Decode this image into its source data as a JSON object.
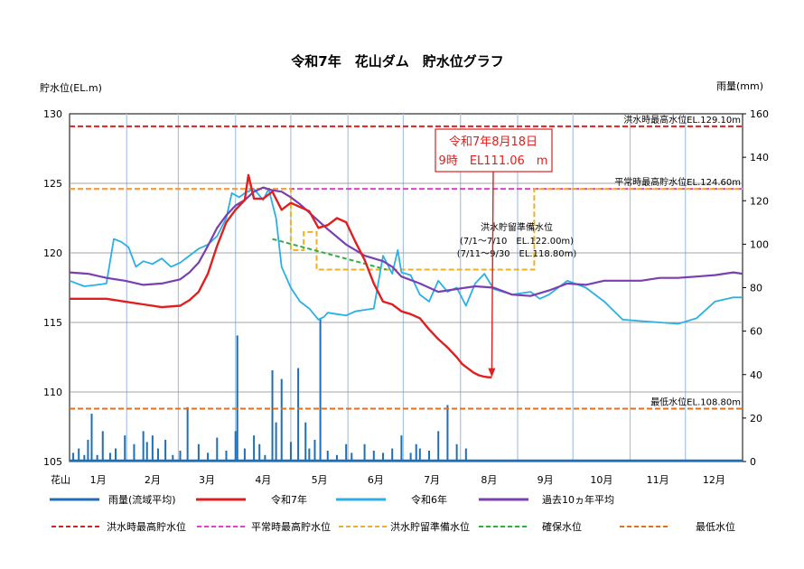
{
  "chart_data": {
    "type": "line",
    "title": "令和7年　花山ダム　貯水位グラフ",
    "ylabel": "貯水位(EL.m)",
    "y2label": "雨量(mm)",
    "xlabel": "花山",
    "ylim": [
      105,
      130
    ],
    "y2lim": [
      0,
      160
    ],
    "yticks": [
      "105",
      "110",
      "115",
      "120",
      "125",
      "130"
    ],
    "y2ticks": [
      "0",
      "20",
      "40",
      "60",
      "80",
      "100",
      "120",
      "140",
      "160"
    ],
    "y2_mark": "80月",
    "months": [
      "1月",
      "2月",
      "3月",
      "4月",
      "5月",
      "6月",
      "7月",
      "8月",
      "9月",
      "10月",
      "11月",
      "12月"
    ],
    "grid": true,
    "colors": {
      "rain": "#1f6fb4",
      "r7": "#e02020",
      "r6": "#2ab0e4",
      "avg10": "#7a3fb0",
      "flood_max": "#e02020",
      "normal_max": "#e040d0",
      "prep": "#f0b020",
      "secure": "#30b040",
      "min": "#e07020"
    },
    "series": [
      {
        "key": "r7",
        "name": "令和7年",
        "x": [
          0,
          10,
          20,
          30,
          40,
          50,
          60,
          65,
          70,
          75,
          80,
          85,
          90,
          95,
          97,
          100,
          105,
          110,
          115,
          120,
          125,
          130,
          135,
          140,
          145,
          150,
          155,
          160,
          165,
          170,
          175,
          180,
          185,
          190,
          195,
          200,
          205,
          210,
          213,
          216,
          219,
          222,
          225,
          227,
          229
        ],
        "values": [
          116.7,
          116.7,
          116.7,
          116.5,
          116.3,
          116.1,
          116.2,
          116.6,
          117.2,
          118.5,
          120.5,
          122.2,
          123.1,
          123.8,
          125.6,
          123.9,
          123.9,
          124.4,
          123.1,
          123.6,
          123.3,
          123.0,
          121.8,
          122.0,
          122.5,
          122.2,
          120.8,
          119.5,
          117.8,
          116.5,
          116.3,
          115.8,
          115.6,
          115.3,
          114.5,
          113.8,
          113.2,
          112.5,
          112.0,
          111.7,
          111.4,
          111.2,
          111.1,
          111.06,
          111.06
        ]
      },
      {
        "key": "r6",
        "name": "令和6年",
        "x": [
          0,
          8,
          15,
          20,
          24,
          28,
          32,
          36,
          40,
          45,
          50,
          55,
          60,
          65,
          70,
          75,
          80,
          85,
          88,
          92,
          95,
          100,
          105,
          108,
          112,
          115,
          120,
          125,
          130,
          135,
          138,
          140,
          145,
          150,
          155,
          160,
          165,
          170,
          175,
          178,
          180,
          185,
          190,
          195,
          200,
          205,
          210,
          215,
          220,
          225,
          230,
          240,
          250,
          255,
          260,
          270,
          280,
          290,
          300,
          310,
          320,
          330,
          340,
          350,
          360,
          365
        ],
        "values": [
          118.0,
          117.6,
          117.7,
          117.8,
          121.0,
          120.8,
          120.4,
          119.0,
          119.4,
          119.2,
          119.6,
          119.0,
          119.3,
          119.8,
          120.3,
          120.6,
          121.2,
          122.5,
          124.3,
          124.0,
          124.3,
          124.6,
          123.8,
          124.6,
          122.5,
          119.0,
          117.5,
          116.5,
          116.0,
          115.2,
          115.4,
          115.7,
          115.6,
          115.5,
          115.8,
          115.9,
          116.0,
          119.8,
          118.5,
          120.2,
          118.6,
          118.4,
          117.0,
          116.5,
          118.0,
          117.2,
          117.5,
          116.2,
          117.8,
          118.5,
          117.4,
          117.0,
          117.2,
          116.7,
          117.0,
          118.0,
          117.5,
          116.5,
          115.2,
          115.1,
          115.0,
          114.9,
          115.3,
          116.5,
          116.8,
          116.8
        ]
      },
      {
        "key": "avg10",
        "name": "過去10ヵ年平均",
        "x": [
          0,
          10,
          20,
          30,
          40,
          50,
          60,
          65,
          70,
          75,
          80,
          85,
          90,
          95,
          100,
          105,
          110,
          115,
          120,
          125,
          130,
          140,
          150,
          160,
          170,
          175,
          180,
          190,
          200,
          210,
          220,
          230,
          240,
          250,
          260,
          270,
          280,
          290,
          300,
          310,
          320,
          330,
          340,
          350,
          360,
          365
        ],
        "values": [
          118.6,
          118.5,
          118.2,
          118.0,
          117.7,
          117.8,
          118.1,
          118.6,
          119.3,
          120.5,
          121.8,
          122.7,
          123.4,
          123.8,
          124.4,
          124.7,
          124.5,
          124.4,
          124.0,
          123.5,
          122.9,
          121.7,
          120.6,
          119.8,
          119.4,
          119.0,
          118.3,
          117.8,
          117.2,
          117.4,
          117.6,
          117.5,
          117.0,
          116.9,
          117.3,
          117.8,
          117.7,
          118.0,
          118.0,
          118.0,
          118.2,
          118.2,
          118.3,
          118.4,
          118.6,
          118.5
        ]
      }
    ],
    "rain": {
      "name": "雨量(流域平均)",
      "x": [
        2,
        5,
        8,
        10,
        12,
        15,
        18,
        22,
        25,
        30,
        35,
        40,
        42,
        45,
        48,
        52,
        56,
        60,
        64,
        70,
        75,
        80,
        85,
        90,
        91,
        95,
        100,
        103,
        106,
        110,
        112,
        115,
        120,
        124,
        128,
        130,
        133,
        136,
        140,
        145,
        150,
        153,
        160,
        165,
        170,
        175,
        180,
        185,
        188,
        190,
        195,
        200,
        205,
        210,
        215
      ],
      "values": [
        4,
        6,
        3,
        10,
        22,
        3,
        14,
        4,
        6,
        12,
        8,
        14,
        9,
        12,
        6,
        10,
        3,
        5,
        25,
        8,
        4,
        11,
        5,
        14,
        58,
        6,
        12,
        8,
        3,
        42,
        18,
        38,
        9,
        43,
        18,
        6,
        10,
        66,
        5,
        3,
        8,
        4,
        8,
        5,
        4,
        6,
        12,
        4,
        8,
        6,
        5,
        14,
        26,
        8,
        6
      ]
    },
    "reference_lines": [
      {
        "key": "flood_max",
        "name": "洪水時最高貯水位",
        "label": "洪水時最高水位EL.129.10m",
        "value": 129.1
      },
      {
        "key": "normal_max",
        "name": "平常時最高貯水位",
        "label": "平常時最高貯水位EL.124.60m",
        "value": 124.6
      },
      {
        "key": "min",
        "name": "最低水位",
        "label": "最低水位EL.108.80m",
        "value": 108.8
      }
    ],
    "prep_line": {
      "key": "prep",
      "name": "洪水貯留準備水位",
      "x": [
        0,
        120,
        120,
        127,
        127,
        134,
        134,
        180,
        180,
        190,
        190,
        370,
        370
      ],
      "values": [
        124.6,
        124.6,
        124.6,
        124.6,
        124.6,
        124.6,
        124.6,
        124.6,
        124.6,
        124.6,
        124.6,
        124.6,
        124.6
      ]
    },
    "prep_steps": {
      "x": [
        0,
        120,
        120,
        127,
        127,
        134,
        134,
        252,
        252,
        365
      ],
      "values": [
        124.6,
        124.6,
        120.2,
        120.2,
        121.5,
        121.5,
        118.8,
        118.8,
        124.6,
        124.6
      ]
    },
    "secure_line": {
      "key": "secure",
      "name": "確保水位",
      "x": [
        110,
        172
      ],
      "values": [
        121.0,
        118.8
      ]
    },
    "annotation": {
      "line1": "令和7年8月18日",
      "line2": "9時　EL111.06　m",
      "x": 229,
      "value": 111.06
    },
    "prep_note": {
      "line1": "洪水貯留準備水位",
      "line2": "(7/1～7/10　EL.122.00m)",
      "line3": "(7/11～9/30　EL.118.80m)"
    }
  }
}
